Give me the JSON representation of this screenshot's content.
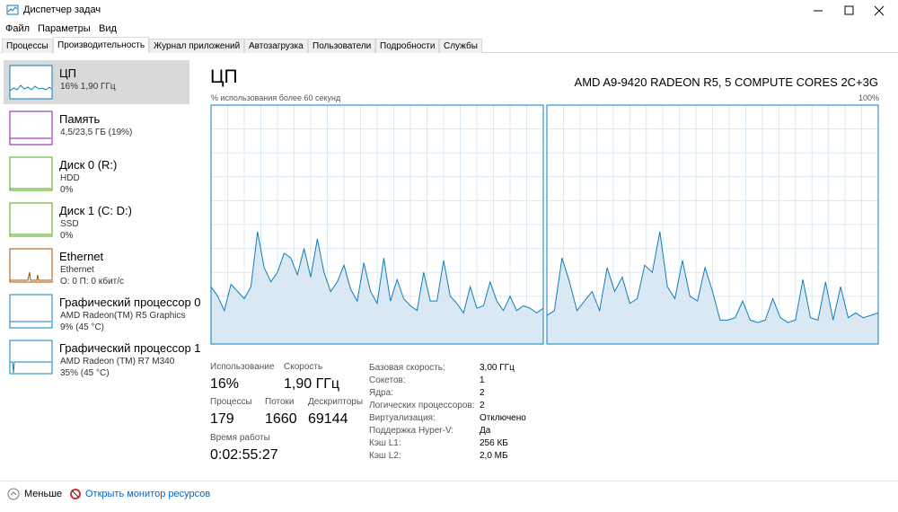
{
  "window": {
    "title": "Диспетчер задач"
  },
  "menu": [
    "Файл",
    "Параметры",
    "Вид"
  ],
  "tabs": [
    "Процессы",
    "Производительность",
    "Журнал приложений",
    "Автозагрузка",
    "Пользователи",
    "Подробности",
    "Службы"
  ],
  "sidebar": [
    {
      "name": "ЦП",
      "lines": [
        "16% 1,90 ГГц"
      ]
    },
    {
      "name": "Память",
      "lines": [
        "4,5/23,5 ГБ (19%)"
      ]
    },
    {
      "name": "Диск 0 (R:)",
      "lines": [
        "HDD",
        "0%"
      ]
    },
    {
      "name": "Диск 1 (C: D:)",
      "lines": [
        "SSD",
        "0%"
      ]
    },
    {
      "name": "Ethernet",
      "lines": [
        "Ethernet",
        "О: 0 П: 0 кбит/с"
      ]
    },
    {
      "name": "Графический процессор 0",
      "lines": [
        "AMD Radeon(TM) R5 Graphics",
        "9% (45 °C)"
      ]
    },
    {
      "name": "Графический процессор 1",
      "lines": [
        "AMD Radeon (TM) R7 M340",
        "35% (45 °C)"
      ]
    }
  ],
  "cpu": {
    "title": "ЦП",
    "model": "AMD A9-9420 RADEON R5, 5 COMPUTE CORES 2C+3G",
    "graph_label": "% использования более 60 секунд",
    "graph_max_label": "100%",
    "ylim": [
      0,
      100
    ],
    "graphs": [
      {
        "values": [
          24,
          20,
          14,
          25,
          22,
          19,
          24,
          47,
          32,
          26,
          30,
          38,
          36,
          29,
          40,
          28,
          44,
          30,
          22,
          26,
          33,
          23,
          18,
          34,
          22,
          17,
          36,
          18,
          27,
          19,
          16,
          14,
          30,
          18,
          18,
          35,
          20,
          17,
          13,
          24,
          15,
          16,
          26,
          18,
          14,
          20,
          14,
          16,
          15,
          13,
          15
        ]
      },
      {
        "values": [
          12,
          14,
          36,
          26,
          14,
          18,
          22,
          14,
          32,
          22,
          28,
          17,
          19,
          33,
          30,
          47,
          24,
          19,
          35,
          20,
          18,
          32,
          22,
          10,
          10,
          11,
          18,
          10,
          9,
          10,
          19,
          11,
          9,
          10,
          27,
          11,
          10,
          26,
          10,
          24,
          11,
          13,
          11,
          12,
          13
        ]
      }
    ],
    "stats": [
      [
        {
          "label": "Использование",
          "value": "16%"
        },
        {
          "label": "Скорость",
          "value": "1,90 ГГц"
        }
      ],
      [
        {
          "label": "Процессы",
          "value": "179"
        },
        {
          "label": "Потоки",
          "value": "1660"
        },
        {
          "label": "Дескрипторы",
          "value": "69144"
        }
      ],
      [
        {
          "label": "Время работы",
          "value": "0:02:55:27"
        }
      ]
    ],
    "details": [
      {
        "label": "Базовая скорость:",
        "value": "3,00 ГГц"
      },
      {
        "label": "Сокетов:",
        "value": "1"
      },
      {
        "label": "Ядра:",
        "value": "2"
      },
      {
        "label": "Логических процессоров:",
        "value": "2"
      },
      {
        "label": "Виртуализация:",
        "value": "Отключено"
      },
      {
        "label": "Поддержка Hyper-V:",
        "value": "Да"
      },
      {
        "label": "Кэш L1:",
        "value": "256 КБ"
      },
      {
        "label": "Кэш L2:",
        "value": "2,0 МБ"
      }
    ]
  },
  "footer": {
    "less": "Меньше",
    "monitor": "Открыть монитор ресурсов"
  }
}
